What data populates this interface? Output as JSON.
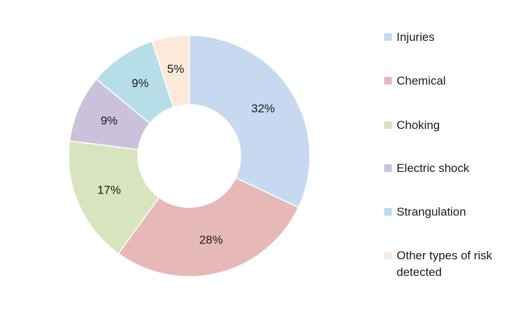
{
  "chart_data": {
    "type": "pie",
    "donut": true,
    "categories": [
      "Injuries",
      "Chemical",
      "Choking",
      "Electric shock",
      "Strangulation",
      "Other types of risk detected"
    ],
    "values": [
      32,
      28,
      17,
      9,
      9,
      5
    ],
    "value_labels": [
      "32%",
      "28%",
      "17%",
      "9%",
      "9%",
      "5%"
    ],
    "colors": [
      "#c6d9f1",
      "#e6b9b8",
      "#d7e4bd",
      "#ccc1da",
      "#b7dee8",
      "#fde9d9"
    ],
    "legend_position": "right",
    "title": ""
  }
}
